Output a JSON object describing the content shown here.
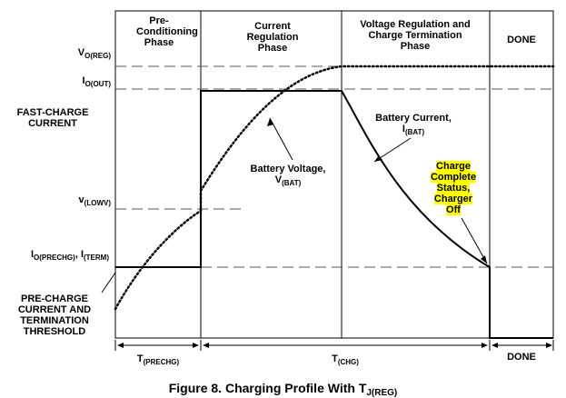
{
  "phases": {
    "pre_conditioning": [
      "Pre-",
      "Conditioning",
      "Phase"
    ],
    "current_regulation": [
      "Current",
      "Regulation",
      "Phase"
    ],
    "voltage_regulation": [
      "Voltage Regulation and",
      "Charge Termination",
      "Phase"
    ],
    "done": "DONE"
  },
  "y_labels": {
    "vo_reg": {
      "main": "V",
      "sub": "O(REG)"
    },
    "io_out": {
      "main": "I",
      "sub": "O(OUT)"
    },
    "fast_charge": [
      "FAST-CHARGE",
      "CURRENT"
    ],
    "v_lowv": {
      "main": "v",
      "sub": "(LOWV)"
    },
    "io_prechg": {
      "main1": "I",
      "sub1": "O(PRECHG)",
      "sep": ", ",
      "main2": "I",
      "sub2": "(TERM)"
    },
    "pre_charge": [
      "PRE-CHARGE",
      "CURRENT AND",
      "TERMINATION",
      "THRESHOLD"
    ]
  },
  "annotations": {
    "battery_voltage": {
      "line1": "Battery Voltage,",
      "main": "V",
      "sub": "(BAT)"
    },
    "battery_current": {
      "line1": "Battery Current,",
      "main": "I",
      "sub": "(BAT)"
    },
    "charge_complete": [
      "Charge",
      "Complete",
      "Status,",
      "Charger",
      "Off"
    ]
  },
  "time_labels": {
    "t_prechg": {
      "main": "T",
      "sub": "(PRECHG)"
    },
    "t_chg": {
      "main": "T",
      "sub": "(CHG)"
    },
    "done": "DONE"
  },
  "caption": {
    "text": "Figure 8.  Charging Profile With T",
    "sub": "J(REG)"
  },
  "colors": {
    "line": "#000000",
    "highlight": "#ffff00",
    "dash": "#555555"
  }
}
